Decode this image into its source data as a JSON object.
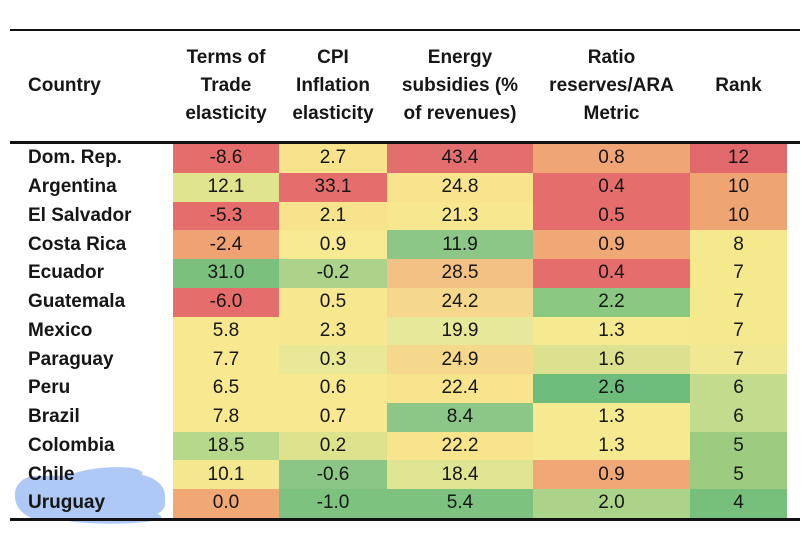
{
  "palette": {
    "rule_line": "#111111",
    "text": "#161616",
    "highlighter_blue": "#A3C2F5",
    "heat_red": "#E56E6C",
    "heat_orange": "#F0A473",
    "heat_yellow": "#F7E68D",
    "heat_green": "#7BC17D"
  },
  "annotation": {
    "type": "highlighter-stroke",
    "color": "#A3C2F5",
    "target_row": "Uruguay"
  },
  "table": {
    "headers": [
      {
        "id": "country",
        "label": "Country"
      },
      {
        "id": "terms_of_trade",
        "label": "Terms of\nTrade\nelasticity"
      },
      {
        "id": "cpi_inflation",
        "label": "CPI\nInflation\nelasticity"
      },
      {
        "id": "energy_subsidies",
        "label": "Energy\nsubsidies (%\nof revenues)"
      },
      {
        "id": "reserves_ara",
        "label": "Ratio\nreserves/ARA\nMetric"
      },
      {
        "id": "rank",
        "label": "Rank"
      }
    ],
    "rows": [
      {
        "country": "Dom. Rep.",
        "highlight": false,
        "cells": [
          {
            "v": "-8.6",
            "bg": "#E56E6C"
          },
          {
            "v": "2.7",
            "bg": "#F7E38B"
          },
          {
            "v": "43.4",
            "bg": "#E26E6E"
          },
          {
            "v": "0.8",
            "bg": "#F0A577"
          },
          {
            "v": "12",
            "bg": "#E2696B"
          }
        ]
      },
      {
        "country": "Argentina",
        "highlight": false,
        "cells": [
          {
            "v": "12.1",
            "bg": "#DFE48D"
          },
          {
            "v": "33.1",
            "bg": "#E56E6C"
          },
          {
            "v": "24.8",
            "bg": "#F7E48C"
          },
          {
            "v": "0.4",
            "bg": "#E56E6C"
          },
          {
            "v": "10",
            "bg": "#EFA571"
          }
        ]
      },
      {
        "country": "El Salvador",
        "highlight": false,
        "cells": [
          {
            "v": "-5.3",
            "bg": "#E56E6C"
          },
          {
            "v": "2.1",
            "bg": "#F7E38B"
          },
          {
            "v": "21.3",
            "bg": "#F7E88F"
          },
          {
            "v": "0.5",
            "bg": "#E56E6C"
          },
          {
            "v": "10",
            "bg": "#EFA571"
          }
        ]
      },
      {
        "country": "Costa Rica",
        "highlight": false,
        "cells": [
          {
            "v": "-2.4",
            "bg": "#EFA273"
          },
          {
            "v": "0.9",
            "bg": "#F7EA93"
          },
          {
            "v": "11.9",
            "bg": "#8CC787"
          },
          {
            "v": "0.9",
            "bg": "#F0A876"
          },
          {
            "v": "8",
            "bg": "#F5E98E"
          }
        ]
      },
      {
        "country": "Ecuador",
        "highlight": false,
        "cells": [
          {
            "v": "31.0",
            "bg": "#7BC17D"
          },
          {
            "v": "-0.2",
            "bg": "#ABD389"
          },
          {
            "v": "28.5",
            "bg": "#F2C183"
          },
          {
            "v": "0.4",
            "bg": "#E56E6C"
          },
          {
            "v": "7",
            "bg": "#F5E98E"
          }
        ]
      },
      {
        "country": "Guatemala",
        "highlight": false,
        "cells": [
          {
            "v": "-6.0",
            "bg": "#E56E6C"
          },
          {
            "v": "0.5",
            "bg": "#F7E78E"
          },
          {
            "v": "24.2",
            "bg": "#F5D88B"
          },
          {
            "v": "2.2",
            "bg": "#8BC983"
          },
          {
            "v": "7",
            "bg": "#F5E98E"
          }
        ]
      },
      {
        "country": "Mexico",
        "highlight": false,
        "cells": [
          {
            "v": "5.8",
            "bg": "#F8E88F"
          },
          {
            "v": "2.3",
            "bg": "#F7E78E"
          },
          {
            "v": "19.9",
            "bg": "#E7E89A"
          },
          {
            "v": "1.3",
            "bg": "#F6EA90"
          },
          {
            "v": "7",
            "bg": "#F5E98E"
          }
        ]
      },
      {
        "country": "Paraguay",
        "highlight": false,
        "cells": [
          {
            "v": "7.7",
            "bg": "#F8E88F"
          },
          {
            "v": "0.3",
            "bg": "#E9E897"
          },
          {
            "v": "24.9",
            "bg": "#F5D88B"
          },
          {
            "v": "1.6",
            "bg": "#DCE18F"
          },
          {
            "v": "7",
            "bg": "#F0E893"
          }
        ]
      },
      {
        "country": "Peru",
        "highlight": false,
        "cells": [
          {
            "v": "6.5",
            "bg": "#F8E88F"
          },
          {
            "v": "0.6",
            "bg": "#F8E88F"
          },
          {
            "v": "22.4",
            "bg": "#F7E48C"
          },
          {
            "v": "2.6",
            "bg": "#6FBD7C"
          },
          {
            "v": "6",
            "bg": "#C2DB8C"
          }
        ]
      },
      {
        "country": "Brazil",
        "highlight": false,
        "cells": [
          {
            "v": "7.8",
            "bg": "#F8E88F"
          },
          {
            "v": "0.7",
            "bg": "#F8E88F"
          },
          {
            "v": "8.4",
            "bg": "#8CC787"
          },
          {
            "v": "1.3",
            "bg": "#F6EA90"
          },
          {
            "v": "6",
            "bg": "#C2DB8C"
          }
        ]
      },
      {
        "country": "Colombia",
        "highlight": false,
        "cells": [
          {
            "v": "18.5",
            "bg": "#B5D88A"
          },
          {
            "v": "0.2",
            "bg": "#DDE38C"
          },
          {
            "v": "22.2",
            "bg": "#F7E48C"
          },
          {
            "v": "1.3",
            "bg": "#F6EA90"
          },
          {
            "v": "5",
            "bg": "#9DCC80"
          }
        ]
      },
      {
        "country": "Chile",
        "highlight": false,
        "cells": [
          {
            "v": "10.1",
            "bg": "#F3E78F"
          },
          {
            "v": "-0.6",
            "bg": "#8CC687"
          },
          {
            "v": "18.4",
            "bg": "#DFE593"
          },
          {
            "v": "0.9",
            "bg": "#F0A876"
          },
          {
            "v": "5",
            "bg": "#9DCC80"
          }
        ]
      },
      {
        "country": "Uruguay",
        "highlight": true,
        "cells": [
          {
            "v": "0.0",
            "bg": "#F0A875"
          },
          {
            "v": "-1.0",
            "bg": "#7DC27F"
          },
          {
            "v": "5.4",
            "bg": "#7DC27F"
          },
          {
            "v": "2.0",
            "bg": "#ABD389"
          },
          {
            "v": "4",
            "bg": "#77C07B"
          }
        ]
      }
    ]
  },
  "chart_data": {
    "type": "table",
    "title": "",
    "subtitle": "heatmap-colored country vulnerability table (red = worse, green = better)",
    "columns": [
      "Country",
      "Terms of Trade elasticity",
      "CPI Inflation elasticity",
      "Energy subsidies (% of revenues)",
      "Ratio reserves/ARA Metric",
      "Rank"
    ],
    "rows": [
      [
        "Dom. Rep.",
        -8.6,
        2.7,
        43.4,
        0.8,
        12
      ],
      [
        "Argentina",
        12.1,
        33.1,
        24.8,
        0.4,
        10
      ],
      [
        "El Salvador",
        -5.3,
        2.1,
        21.3,
        0.5,
        10
      ],
      [
        "Costa Rica",
        -2.4,
        0.9,
        11.9,
        0.9,
        8
      ],
      [
        "Ecuador",
        31.0,
        -0.2,
        28.5,
        0.4,
        7
      ],
      [
        "Guatemala",
        -6.0,
        0.5,
        24.2,
        2.2,
        7
      ],
      [
        "Mexico",
        5.8,
        2.3,
        19.9,
        1.3,
        7
      ],
      [
        "Paraguay",
        7.7,
        0.3,
        24.9,
        1.6,
        7
      ],
      [
        "Peru",
        6.5,
        0.6,
        22.4,
        2.6,
        6
      ],
      [
        "Brazil",
        7.8,
        0.7,
        8.4,
        1.3,
        6
      ],
      [
        "Colombia",
        18.5,
        0.2,
        22.2,
        1.3,
        5
      ],
      [
        "Chile",
        10.1,
        -0.6,
        18.4,
        0.9,
        5
      ],
      [
        "Uruguay",
        0.0,
        -1.0,
        5.4,
        2.0,
        4
      ]
    ],
    "highlighted_row": "Uruguay",
    "legend_position": "none",
    "grid": false
  }
}
